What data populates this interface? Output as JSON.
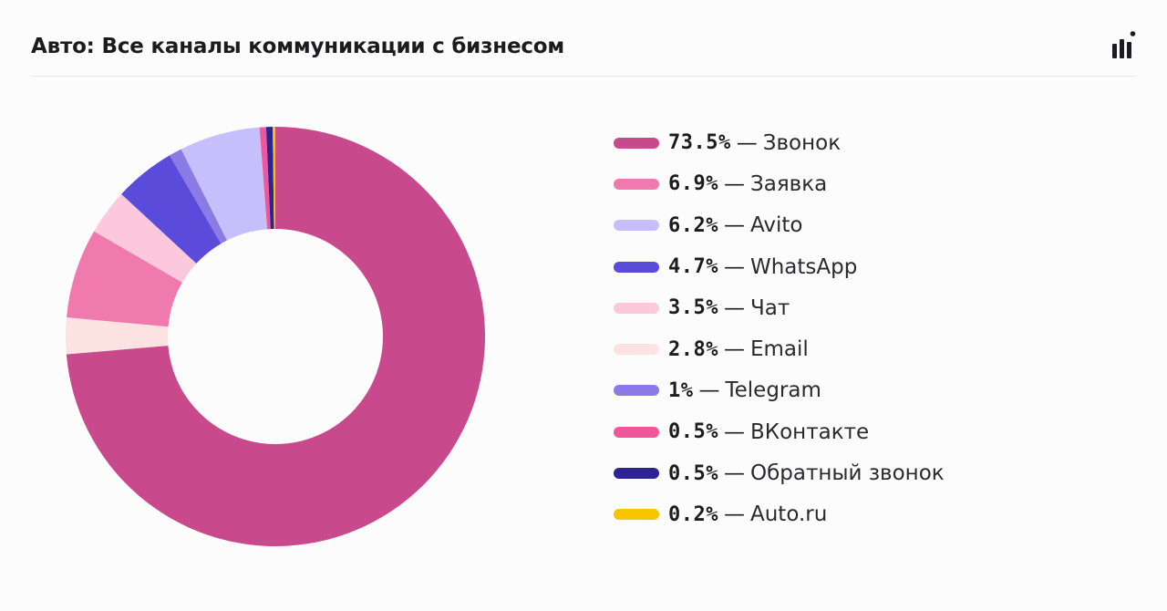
{
  "header": {
    "title": "Авто: Все каналы коммуникации с бизнесом",
    "icon": "bar-chart-icon"
  },
  "legend": {
    "separator": "—"
  },
  "chart_data": {
    "type": "pie",
    "donut": true,
    "start_angle_deg": 0,
    "direction": "clockwise",
    "legend_position": "right",
    "slices": [
      {
        "label": "Звонок",
        "value": 73.5,
        "value_label": "73.5%",
        "color": "#c8498c"
      },
      {
        "label": "Email",
        "value": 2.8,
        "value_label": "2.8%",
        "color": "#fde2e2"
      },
      {
        "label": "Заявка",
        "value": 6.9,
        "value_label": "6.9%",
        "color": "#f07aad"
      },
      {
        "label": "Чат",
        "value": 3.5,
        "value_label": "3.5%",
        "color": "#fcc8dc"
      },
      {
        "label": "WhatsApp",
        "value": 4.7,
        "value_label": "4.7%",
        "color": "#5b4bdb"
      },
      {
        "label": "Telegram",
        "value": 1.0,
        "value_label": "1%",
        "color": "#8a7be6"
      },
      {
        "label": "Avito",
        "value": 6.2,
        "value_label": "6.2%",
        "color": "#c6bffc"
      },
      {
        "label": "ВКонтакте",
        "value": 0.5,
        "value_label": "0.5%",
        "color": "#f0569a"
      },
      {
        "label": "Обратный звонок",
        "value": 0.5,
        "value_label": "0.5%",
        "color": "#2d2391"
      },
      {
        "label": "Auto.ru",
        "value": 0.2,
        "value_label": "0.2%",
        "color": "#f7c400"
      }
    ],
    "legend_order": [
      "Звонок",
      "Заявка",
      "Avito",
      "WhatsApp",
      "Чат",
      "Email",
      "Telegram",
      "ВКонтакте",
      "Обратный звонок",
      "Auto.ru"
    ]
  }
}
